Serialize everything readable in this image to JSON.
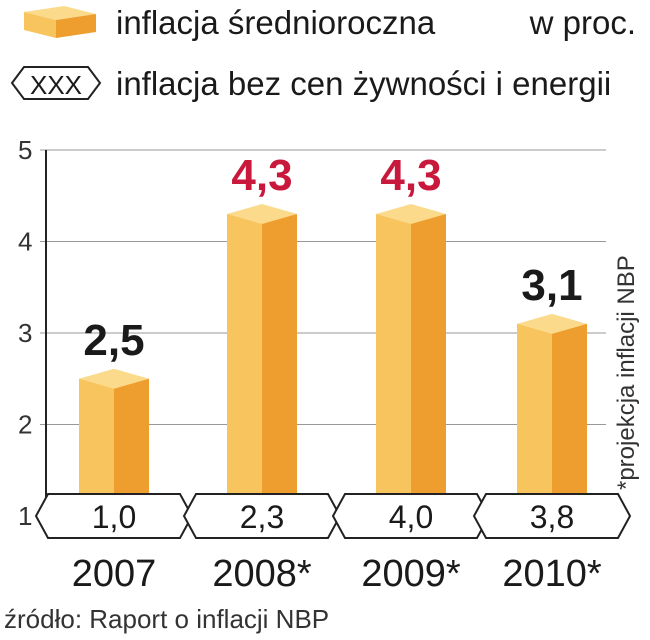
{
  "legend": {
    "bar_label": "inflacja średnioroczna",
    "unit": "w proc.",
    "marker_text": "XXX",
    "core_label": "inflacja bez cen żywności i energii"
  },
  "note": "*projekcja inflacji NBP",
  "source": "źródło: Raport o inflacji NBP",
  "chart_data": {
    "type": "bar",
    "categories": [
      "2007",
      "2008*",
      "2009*",
      "2010*"
    ],
    "series": [
      {
        "name": "inflacja średnioroczna",
        "values": [
          2.5,
          4.3,
          4.3,
          3.1
        ],
        "labels": [
          "2,5",
          "4,3",
          "4,3",
          "3,1"
        ]
      },
      {
        "name": "inflacja bez cen żywności i energii",
        "values": [
          1.0,
          2.3,
          4.0,
          3.8
        ],
        "labels": [
          "1,0",
          "2,3",
          "4,0",
          "3,8"
        ]
      }
    ],
    "yticks": [
      "1",
      "2",
      "3",
      "4",
      "5"
    ],
    "ylim": [
      1,
      5
    ],
    "grid": true,
    "colors": {
      "bar_front_light": "#F7C45E",
      "bar_front_dark": "#EE9E2E",
      "bar_top": "#FBDA8C",
      "highlight_value": "#C8193C",
      "normal_value": "#1a1a1a",
      "grid": "#999999",
      "axis": "#222222"
    },
    "highlight_indices": [
      1,
      2
    ]
  }
}
